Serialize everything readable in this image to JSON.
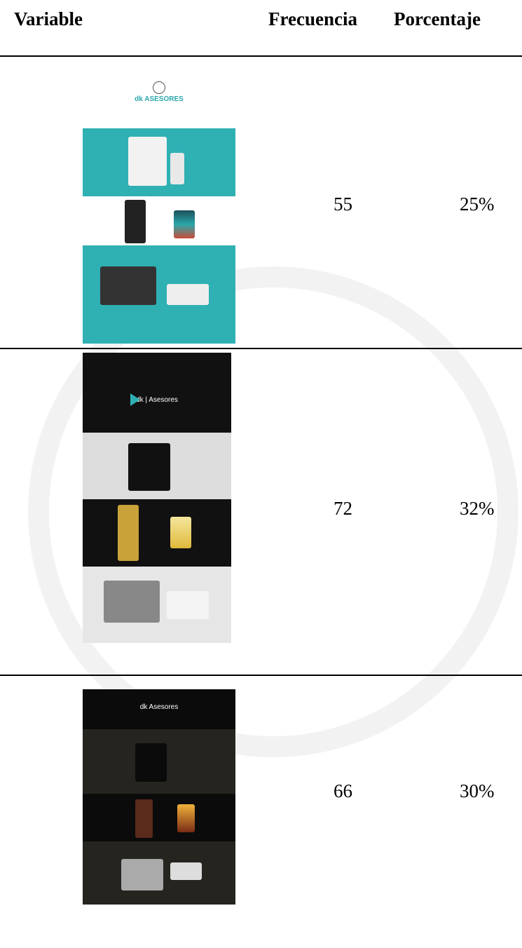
{
  "table": {
    "header": [
      "Variable",
      "Frecuencia",
      "Porcentaje"
    ],
    "rows": [
      {
        "logo": "dk ASESORES",
        "frequency": "55",
        "percentage": "25%"
      },
      {
        "logo": "dk | Asesores",
        "frequency": "72",
        "percentage": "32%"
      },
      {
        "logo": "dk Asesores",
        "frequency": "66",
        "percentage": "30%"
      }
    ]
  }
}
